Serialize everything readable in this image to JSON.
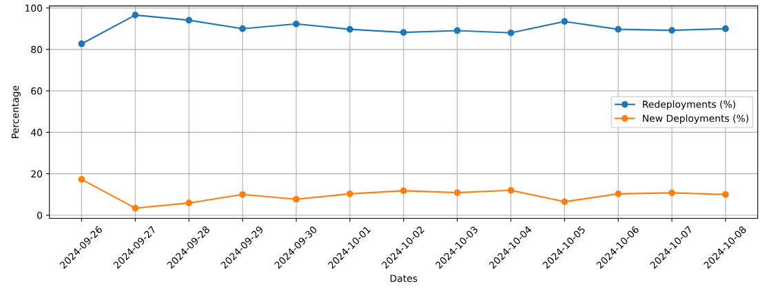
{
  "chart_data": {
    "type": "line",
    "xlabel": "Dates",
    "ylabel": "Percentage",
    "categories": [
      "2024-09-26",
      "2024-09-27",
      "2024-09-28",
      "2024-09-29",
      "2024-09-30",
      "2024-10-01",
      "2024-10-02",
      "2024-10-03",
      "2024-10-04",
      "2024-10-05",
      "2024-10-06",
      "2024-10-07",
      "2024-10-08"
    ],
    "series": [
      {
        "name": "Redeployments (%)",
        "color": "#1f77b4",
        "values": [
          82.7,
          96.6,
          94.1,
          90.0,
          92.3,
          89.7,
          88.2,
          89.1,
          88.0,
          93.5,
          89.7,
          89.2,
          90.0
        ]
      },
      {
        "name": "New Deployments (%)",
        "color": "#ff7f0e",
        "values": [
          17.3,
          3.4,
          5.9,
          10.0,
          7.7,
          10.3,
          11.8,
          10.9,
          12.0,
          6.5,
          10.3,
          10.8,
          10.0
        ]
      }
    ],
    "ylim": [
      -1.5,
      101
    ],
    "yticks": [
      0,
      20,
      40,
      60,
      80,
      100
    ],
    "grid": true,
    "legend": "center right",
    "marker": "circle",
    "line_style": "solid"
  }
}
